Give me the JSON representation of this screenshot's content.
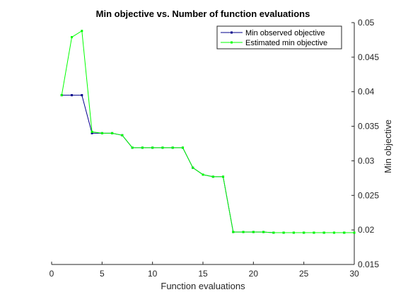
{
  "chart_data": {
    "type": "line",
    "title": "Min objective vs. Number of function evaluations",
    "xlabel": "Function evaluations",
    "ylabel": "Min objective",
    "xlim": [
      0,
      30
    ],
    "ylim": [
      0.015,
      0.05
    ],
    "xticks": [
      0,
      5,
      10,
      15,
      20,
      25,
      30
    ],
    "xtick_labels": [
      "0",
      "5",
      "10",
      "15",
      "20",
      "25",
      "30"
    ],
    "yticks": [
      0.015,
      0.02,
      0.025,
      0.03,
      0.035,
      0.04,
      0.045,
      0.05
    ],
    "ytick_labels": [
      "0.015",
      "0.02",
      "0.025",
      "0.03",
      "0.035",
      "0.04",
      "0.045",
      "0.05"
    ],
    "y_axis_side": "right",
    "grid": false,
    "legend_position": "top-right",
    "x": [
      1,
      2,
      3,
      4,
      5,
      6,
      7,
      8,
      9,
      10,
      11,
      12,
      13,
      14,
      15,
      16,
      17,
      18,
      19,
      20,
      21,
      22,
      23,
      24,
      25,
      26,
      27,
      28,
      29,
      30
    ],
    "series": [
      {
        "name": "Min observed objective",
        "color": "#00008b",
        "marker": "square",
        "values": [
          0.0395,
          0.0395,
          0.0395,
          0.034,
          0.034,
          0.034,
          0.0337,
          0.0319,
          0.0319,
          0.0319,
          0.0319,
          0.0319,
          0.0319,
          0.029,
          0.028,
          0.0277,
          0.0277,
          0.0197,
          0.0197,
          0.0197,
          0.0197,
          0.0196,
          0.0196,
          0.0196,
          0.0196,
          0.0196,
          0.0196,
          0.0196,
          0.0196,
          0.0196
        ]
      },
      {
        "name": "Estimated min objective",
        "color": "#00ff00",
        "marker": "square",
        "values": [
          0.0395,
          0.0479,
          0.0488,
          0.0342,
          0.034,
          0.034,
          0.0337,
          0.0319,
          0.0319,
          0.0319,
          0.0319,
          0.0319,
          0.0319,
          0.029,
          0.028,
          0.0277,
          0.0277,
          0.0197,
          0.0197,
          0.0197,
          0.0197,
          0.0196,
          0.0196,
          0.0196,
          0.0196,
          0.0196,
          0.0196,
          0.0196,
          0.0196,
          0.0196
        ]
      }
    ]
  }
}
